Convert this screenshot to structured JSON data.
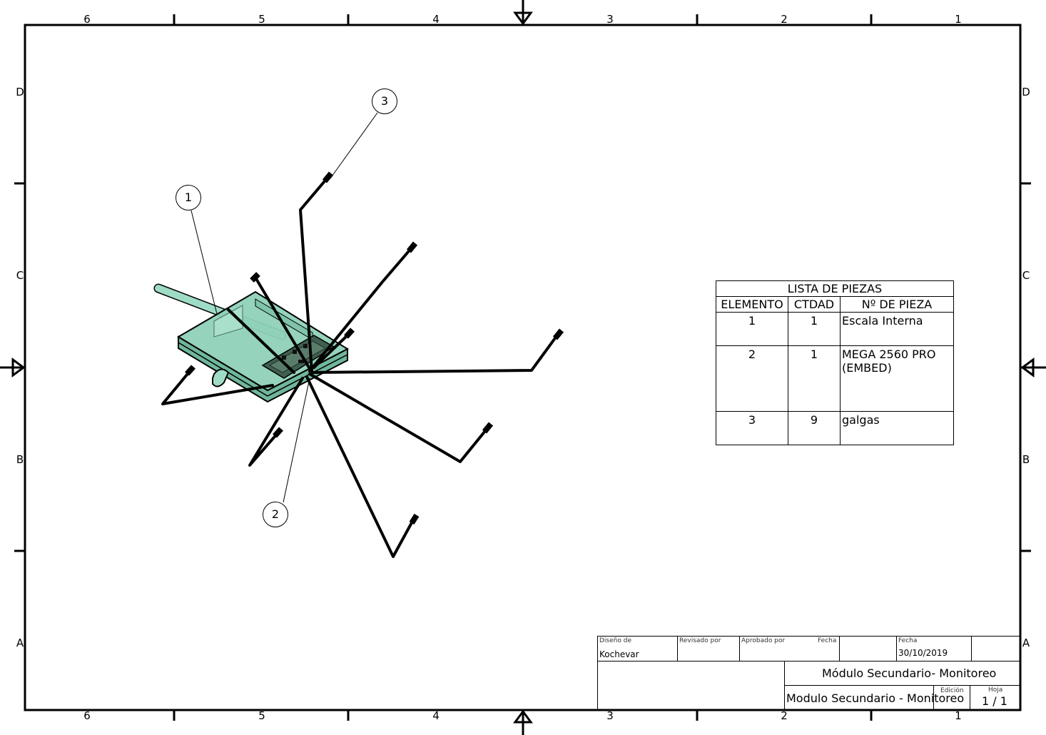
{
  "border": {
    "top_columns": [
      "6",
      "5",
      "4",
      "3",
      "2",
      "1"
    ],
    "bottom_columns": [
      "6",
      "5",
      "4",
      "3",
      "2",
      "1"
    ],
    "left_rows": [
      "D",
      "C",
      "B",
      "A"
    ],
    "right_rows": [
      "D",
      "C",
      "B",
      "A"
    ]
  },
  "balloons": [
    {
      "label": "3"
    },
    {
      "label": "1"
    },
    {
      "label": "2"
    }
  ],
  "parts_list": {
    "title": "LISTA DE PIEZAS",
    "headers": [
      "ELEMENTO",
      "CTDAD",
      "Nº DE PIEZA"
    ],
    "rows": [
      {
        "elemento": "1",
        "ctdad": "1",
        "pieza": "Escala Interna"
      },
      {
        "elemento": "2",
        "ctdad": "1",
        "pieza": "MEGA 2560 PRO\n(EMBED)"
      },
      {
        "elemento": "3",
        "ctdad": "9",
        "pieza": "galgas"
      }
    ]
  },
  "title_block": {
    "designed_by_label": "Diseño de",
    "designed_by": "Kochevar",
    "reviewed_by_label": "Revisado por",
    "approved_by_label": "Aprobado por",
    "date_label_1": "Fecha",
    "date_label_2": "Fecha",
    "date": "30/10/2019",
    "title": "Módulo Secundario- Monitoreo",
    "file_name": "Modulo Secundario - Monitoreo",
    "edition_label": "Edición",
    "sheet_label": "Hoja",
    "sheet": "1 / 1"
  },
  "colors": {
    "line": "#000000",
    "body_fill": "#8fd1b8",
    "body_fill_dark": "#6fb79b",
    "pcb": "#3f5f4f"
  }
}
